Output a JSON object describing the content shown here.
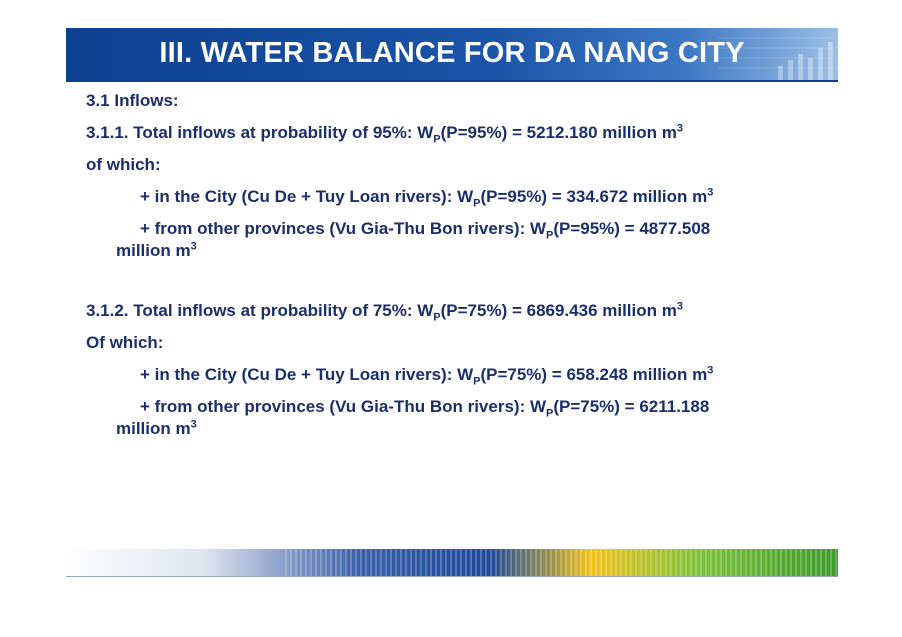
{
  "title": "III. WATER BALANCE FOR DA NANG CITY",
  "section": "3.1 Inflows:",
  "p95": {
    "heading_pre": "3.1.1. Total inflows at probability of 95%: W",
    "heading_sub": "P",
    "heading_post": "(P=95%) = 5212.180 million m",
    "heading_sup": "3",
    "of_which": "of which:",
    "city_pre": "+ in the City (Cu De + Tuy Loan rivers): W",
    "city_sub": "P",
    "city_post": "(P=95%) = 334.672 million m",
    "city_sup": "3",
    "prov_pre": "+ from other provinces (Vu Gia-Thu Bon rivers):  W",
    "prov_sub": "P",
    "prov_post": "(P=95%) = 4877.508",
    "prov_line2": "million m",
    "prov_sup": "3"
  },
  "p75": {
    "heading_pre": "3.1.2. Total inflows at probability of 75%: W",
    "heading_sub": "P",
    "heading_post": "(P=75%) = 6869.436 million m",
    "heading_sup": "3",
    "of_which": "Of which:",
    "city_pre": "+ in the City (Cu De + Tuy Loan rivers): W",
    "city_sub": "P",
    "city_post": "(P=75%) = 658.248 million m",
    "city_sup": "3",
    "prov_pre": "+ from other provinces (Vu Gia-Thu Bon rivers): W",
    "prov_sub": "P",
    "prov_post": "(P=75%) = 6211.188",
    "prov_line2": "million m",
    "prov_sup": "3"
  },
  "colors": {
    "title_bg": "#0d3f8f",
    "text": "#1b2f6b"
  }
}
